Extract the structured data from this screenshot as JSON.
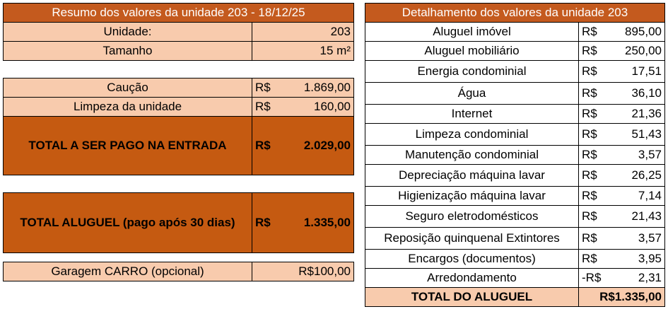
{
  "summary": {
    "title": "Resumo dos valores da unidade 203 - 18/12/25",
    "unit_label": "Unidade:",
    "unit_value": "203",
    "size_label": "Tamanho",
    "size_value": "15 m²",
    "deposit_label": "Caução",
    "deposit_currency": "R$",
    "deposit_value": "1.869,00",
    "cleaning_label": "Limpeza da unidade",
    "cleaning_currency": "R$",
    "cleaning_value": "160,00",
    "entry_total_label": "TOTAL A SER PAGO NA ENTRADA",
    "entry_total_currency": "R$",
    "entry_total_value": "2.029,00",
    "rent_total_label": "TOTAL ALUGUEL (pago após 30 dias)",
    "rent_total_currency": "R$",
    "rent_total_value": "1.335,00",
    "garage_label": "Garagem CARRO (opcional)",
    "garage_value": "R$100,00"
  },
  "detail": {
    "title": "Detalhamento dos valores da unidade 203",
    "items": [
      {
        "label": "Aluguel imóvel",
        "currency": "R$",
        "value": "895,00"
      },
      {
        "label": "Aluguel mobiliário",
        "currency": "R$",
        "value": "250,00"
      },
      {
        "label": "Energia condominial",
        "currency": "R$",
        "value": "17,51"
      },
      {
        "label": "Água",
        "currency": "R$",
        "value": "36,10"
      },
      {
        "label": "Internet",
        "currency": "R$",
        "value": "21,36"
      },
      {
        "label": "Limpeza condominial",
        "currency": "R$",
        "value": "51,43"
      },
      {
        "label": "Manutenção condominial",
        "currency": "R$",
        "value": "3,57"
      },
      {
        "label": "Depreciação máquina lavar",
        "currency": "R$",
        "value": "26,25"
      },
      {
        "label": "Higienização máquina lavar",
        "currency": "R$",
        "value": "7,14"
      },
      {
        "label": "Seguro eletrodomésticos",
        "currency": "R$",
        "value": "21,43"
      },
      {
        "label": "Reposição quinquenal Extintores",
        "currency": "R$",
        "value": "3,57"
      },
      {
        "label": "Encargos (documentos)",
        "currency": "R$",
        "value": "3,95"
      },
      {
        "label": "Arredondamento",
        "currency": "-R$",
        "value": "2,31"
      }
    ],
    "total_label": "TOTAL DO ALUGUEL",
    "total_value": "R$1.335,00"
  },
  "colors": {
    "header": "#c45a1e",
    "peach": "#f8cbad",
    "rust": "#c55a11"
  }
}
